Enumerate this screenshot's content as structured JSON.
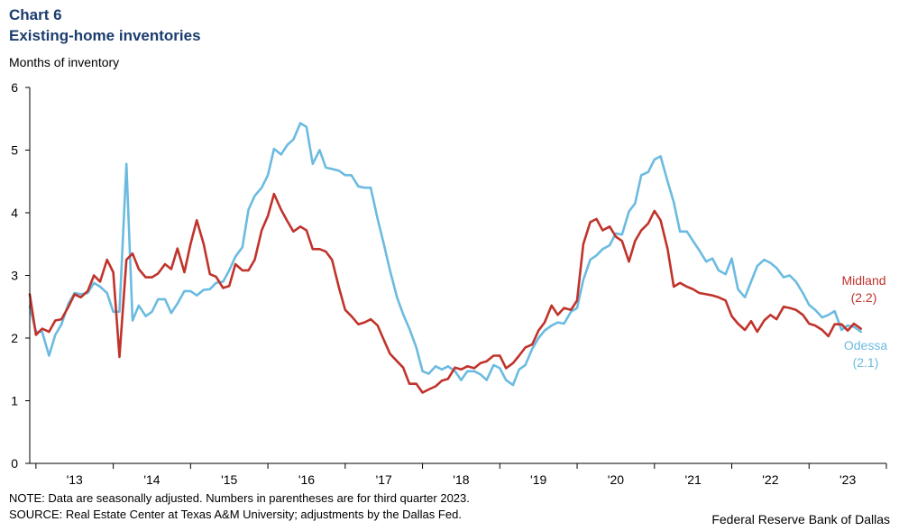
{
  "header": {
    "chart_number": "Chart 6",
    "title": "Existing-home inventories",
    "y_unit": "Months of inventory"
  },
  "footer": {
    "note": "NOTE: Data are seasonally adjusted. Numbers in parentheses are for third quarter 2023.",
    "source": "SOURCE: Real Estate Center at Texas A&M University; adjustments by the Dallas Fed.",
    "credit": "Federal Reserve Bank of Dallas"
  },
  "colors": {
    "midland": "#c0332b",
    "odessa": "#6bbbe0",
    "axis": "#000000"
  },
  "chart_data": {
    "type": "line",
    "title": "Existing-home inventories",
    "ylabel": "Months of inventory",
    "xlabel": "",
    "ylim": [
      0,
      6
    ],
    "yticks": [
      0,
      1,
      2,
      3,
      4,
      5,
      6
    ],
    "xlim": [
      2012.92,
      2024.0
    ],
    "xticks": [
      {
        "label": "'13",
        "year": 2013
      },
      {
        "label": "'14",
        "year": 2014
      },
      {
        "label": "'15",
        "year": 2015
      },
      {
        "label": "'16",
        "year": 2016
      },
      {
        "label": "'17",
        "year": 2017
      },
      {
        "label": "'18",
        "year": 2018
      },
      {
        "label": "'19",
        "year": 2019
      },
      {
        "label": "'20",
        "year": 2020
      },
      {
        "label": "'21",
        "year": 2021
      },
      {
        "label": "'22",
        "year": 2022
      },
      {
        "label": "'23",
        "year": 2023
      }
    ],
    "grid": false,
    "series": [
      {
        "name": "Midland",
        "end_label": [
          "Midland",
          "(2.2)"
        ],
        "color": "#c0332b",
        "points": [
          [
            2012.92,
            2.7
          ],
          [
            2013.0,
            2.05
          ],
          [
            2013.08,
            2.15
          ],
          [
            2013.17,
            2.1
          ],
          [
            2013.25,
            2.28
          ],
          [
            2013.33,
            2.3
          ],
          [
            2013.42,
            2.5
          ],
          [
            2013.5,
            2.7
          ],
          [
            2013.58,
            2.65
          ],
          [
            2013.67,
            2.75
          ],
          [
            2013.75,
            3.0
          ],
          [
            2013.83,
            2.9
          ],
          [
            2013.92,
            3.25
          ],
          [
            2014.0,
            3.05
          ],
          [
            2014.08,
            1.7
          ],
          [
            2014.17,
            3.25
          ],
          [
            2014.25,
            3.35
          ],
          [
            2014.33,
            3.1
          ],
          [
            2014.42,
            2.97
          ],
          [
            2014.5,
            2.97
          ],
          [
            2014.58,
            3.03
          ],
          [
            2014.67,
            3.18
          ],
          [
            2014.75,
            3.1
          ],
          [
            2014.83,
            3.43
          ],
          [
            2014.92,
            3.05
          ],
          [
            2015.0,
            3.5
          ],
          [
            2015.08,
            3.88
          ],
          [
            2015.17,
            3.5
          ],
          [
            2015.25,
            3.02
          ],
          [
            2015.33,
            2.98
          ],
          [
            2015.42,
            2.8
          ],
          [
            2015.5,
            2.83
          ],
          [
            2015.58,
            3.18
          ],
          [
            2015.67,
            3.08
          ],
          [
            2015.75,
            3.08
          ],
          [
            2015.83,
            3.25
          ],
          [
            2015.92,
            3.72
          ],
          [
            2016.0,
            3.95
          ],
          [
            2016.08,
            4.3
          ],
          [
            2016.17,
            4.05
          ],
          [
            2016.25,
            3.87
          ],
          [
            2016.33,
            3.7
          ],
          [
            2016.42,
            3.78
          ],
          [
            2016.5,
            3.72
          ],
          [
            2016.58,
            3.42
          ],
          [
            2016.67,
            3.42
          ],
          [
            2016.75,
            3.38
          ],
          [
            2016.83,
            3.25
          ],
          [
            2016.92,
            2.8
          ],
          [
            2017.0,
            2.45
          ],
          [
            2017.08,
            2.35
          ],
          [
            2017.17,
            2.22
          ],
          [
            2017.25,
            2.25
          ],
          [
            2017.33,
            2.3
          ],
          [
            2017.42,
            2.2
          ],
          [
            2017.5,
            1.97
          ],
          [
            2017.58,
            1.75
          ],
          [
            2017.67,
            1.63
          ],
          [
            2017.75,
            1.53
          ],
          [
            2017.83,
            1.27
          ],
          [
            2017.92,
            1.27
          ],
          [
            2018.0,
            1.13
          ],
          [
            2018.08,
            1.18
          ],
          [
            2018.17,
            1.23
          ],
          [
            2018.25,
            1.32
          ],
          [
            2018.33,
            1.35
          ],
          [
            2018.42,
            1.53
          ],
          [
            2018.5,
            1.5
          ],
          [
            2018.58,
            1.55
          ],
          [
            2018.67,
            1.52
          ],
          [
            2018.75,
            1.6
          ],
          [
            2018.83,
            1.63
          ],
          [
            2018.92,
            1.72
          ],
          [
            2019.0,
            1.72
          ],
          [
            2019.08,
            1.52
          ],
          [
            2019.17,
            1.6
          ],
          [
            2019.25,
            1.72
          ],
          [
            2019.33,
            1.85
          ],
          [
            2019.42,
            1.9
          ],
          [
            2019.5,
            2.12
          ],
          [
            2019.58,
            2.25
          ],
          [
            2019.67,
            2.52
          ],
          [
            2019.75,
            2.37
          ],
          [
            2019.83,
            2.48
          ],
          [
            2019.92,
            2.45
          ],
          [
            2020.0,
            2.6
          ],
          [
            2020.08,
            3.5
          ],
          [
            2020.17,
            3.85
          ],
          [
            2020.25,
            3.9
          ],
          [
            2020.33,
            3.72
          ],
          [
            2020.42,
            3.78
          ],
          [
            2020.5,
            3.62
          ],
          [
            2020.58,
            3.55
          ],
          [
            2020.67,
            3.22
          ],
          [
            2020.75,
            3.55
          ],
          [
            2020.83,
            3.72
          ],
          [
            2020.92,
            3.83
          ],
          [
            2021.0,
            4.03
          ],
          [
            2021.08,
            3.88
          ],
          [
            2021.17,
            3.42
          ],
          [
            2021.25,
            2.82
          ],
          [
            2021.33,
            2.88
          ],
          [
            2021.42,
            2.82
          ],
          [
            2021.5,
            2.78
          ],
          [
            2021.58,
            2.72
          ],
          [
            2021.67,
            2.7
          ],
          [
            2021.75,
            2.68
          ],
          [
            2021.83,
            2.65
          ],
          [
            2021.92,
            2.6
          ],
          [
            2022.0,
            2.35
          ],
          [
            2022.08,
            2.23
          ],
          [
            2022.17,
            2.13
          ],
          [
            2022.25,
            2.27
          ],
          [
            2022.33,
            2.1
          ],
          [
            2022.42,
            2.28
          ],
          [
            2022.5,
            2.37
          ],
          [
            2022.58,
            2.3
          ],
          [
            2022.67,
            2.5
          ],
          [
            2022.75,
            2.48
          ],
          [
            2022.83,
            2.45
          ],
          [
            2022.92,
            2.37
          ],
          [
            2023.0,
            2.23
          ],
          [
            2023.08,
            2.2
          ],
          [
            2023.17,
            2.13
          ],
          [
            2023.25,
            2.03
          ],
          [
            2023.33,
            2.22
          ],
          [
            2023.42,
            2.22
          ],
          [
            2023.5,
            2.12
          ],
          [
            2023.58,
            2.23
          ],
          [
            2023.67,
            2.15
          ]
        ]
      },
      {
        "name": "Odessa",
        "end_label": [
          "Odessa",
          "(2.1)"
        ],
        "color": "#6bbbe0",
        "points": [
          [
            2012.92,
            2.5
          ],
          [
            2013.0,
            2.1
          ],
          [
            2013.08,
            2.1
          ],
          [
            2013.17,
            1.72
          ],
          [
            2013.25,
            2.05
          ],
          [
            2013.33,
            2.22
          ],
          [
            2013.42,
            2.55
          ],
          [
            2013.5,
            2.72
          ],
          [
            2013.58,
            2.7
          ],
          [
            2013.67,
            2.72
          ],
          [
            2013.75,
            2.88
          ],
          [
            2013.83,
            2.82
          ],
          [
            2013.92,
            2.72
          ],
          [
            2014.0,
            2.42
          ],
          [
            2014.08,
            2.42
          ],
          [
            2014.17,
            4.78
          ],
          [
            2014.25,
            2.28
          ],
          [
            2014.33,
            2.52
          ],
          [
            2014.42,
            2.35
          ],
          [
            2014.5,
            2.42
          ],
          [
            2014.58,
            2.62
          ],
          [
            2014.67,
            2.62
          ],
          [
            2014.75,
            2.4
          ],
          [
            2014.83,
            2.55
          ],
          [
            2014.92,
            2.75
          ],
          [
            2015.0,
            2.75
          ],
          [
            2015.08,
            2.68
          ],
          [
            2015.17,
            2.77
          ],
          [
            2015.25,
            2.78
          ],
          [
            2015.33,
            2.88
          ],
          [
            2015.42,
            2.9
          ],
          [
            2015.5,
            3.08
          ],
          [
            2015.58,
            3.3
          ],
          [
            2015.67,
            3.45
          ],
          [
            2015.75,
            4.05
          ],
          [
            2015.83,
            4.27
          ],
          [
            2015.92,
            4.4
          ],
          [
            2016.0,
            4.6
          ],
          [
            2016.08,
            5.02
          ],
          [
            2016.17,
            4.93
          ],
          [
            2016.25,
            5.08
          ],
          [
            2016.33,
            5.17
          ],
          [
            2016.42,
            5.43
          ],
          [
            2016.5,
            5.37
          ],
          [
            2016.58,
            4.78
          ],
          [
            2016.67,
            5.0
          ],
          [
            2016.75,
            4.72
          ],
          [
            2016.83,
            4.7
          ],
          [
            2016.92,
            4.67
          ],
          [
            2017.0,
            4.6
          ],
          [
            2017.08,
            4.6
          ],
          [
            2017.17,
            4.42
          ],
          [
            2017.25,
            4.4
          ],
          [
            2017.33,
            4.4
          ],
          [
            2017.42,
            3.9
          ],
          [
            2017.5,
            3.5
          ],
          [
            2017.58,
            3.08
          ],
          [
            2017.67,
            2.65
          ],
          [
            2017.75,
            2.38
          ],
          [
            2017.83,
            2.15
          ],
          [
            2017.92,
            1.85
          ],
          [
            2018.0,
            1.47
          ],
          [
            2018.08,
            1.43
          ],
          [
            2018.17,
            1.55
          ],
          [
            2018.25,
            1.5
          ],
          [
            2018.33,
            1.55
          ],
          [
            2018.42,
            1.47
          ],
          [
            2018.5,
            1.33
          ],
          [
            2018.58,
            1.47
          ],
          [
            2018.67,
            1.47
          ],
          [
            2018.75,
            1.42
          ],
          [
            2018.83,
            1.33
          ],
          [
            2018.92,
            1.57
          ],
          [
            2019.0,
            1.52
          ],
          [
            2019.08,
            1.33
          ],
          [
            2019.17,
            1.25
          ],
          [
            2019.25,
            1.5
          ],
          [
            2019.33,
            1.57
          ],
          [
            2019.42,
            1.83
          ],
          [
            2019.5,
            2.0
          ],
          [
            2019.58,
            2.12
          ],
          [
            2019.67,
            2.2
          ],
          [
            2019.75,
            2.25
          ],
          [
            2019.83,
            2.23
          ],
          [
            2019.92,
            2.42
          ],
          [
            2020.0,
            2.48
          ],
          [
            2020.08,
            2.93
          ],
          [
            2020.17,
            3.25
          ],
          [
            2020.25,
            3.32
          ],
          [
            2020.33,
            3.42
          ],
          [
            2020.42,
            3.48
          ],
          [
            2020.5,
            3.67
          ],
          [
            2020.58,
            3.65
          ],
          [
            2020.67,
            4.02
          ],
          [
            2020.75,
            4.15
          ],
          [
            2020.83,
            4.6
          ],
          [
            2020.92,
            4.65
          ],
          [
            2021.0,
            4.85
          ],
          [
            2021.08,
            4.9
          ],
          [
            2021.17,
            4.5
          ],
          [
            2021.25,
            4.17
          ],
          [
            2021.33,
            3.7
          ],
          [
            2021.42,
            3.7
          ],
          [
            2021.5,
            3.55
          ],
          [
            2021.58,
            3.4
          ],
          [
            2021.67,
            3.22
          ],
          [
            2021.75,
            3.27
          ],
          [
            2021.83,
            3.08
          ],
          [
            2021.92,
            3.02
          ],
          [
            2022.0,
            3.27
          ],
          [
            2022.08,
            2.78
          ],
          [
            2022.17,
            2.65
          ],
          [
            2022.25,
            2.9
          ],
          [
            2022.33,
            3.15
          ],
          [
            2022.42,
            3.25
          ],
          [
            2022.5,
            3.2
          ],
          [
            2022.58,
            3.12
          ],
          [
            2022.67,
            2.97
          ],
          [
            2022.75,
            3.0
          ],
          [
            2022.83,
            2.9
          ],
          [
            2022.92,
            2.72
          ],
          [
            2023.0,
            2.53
          ],
          [
            2023.08,
            2.45
          ],
          [
            2023.17,
            2.33
          ],
          [
            2023.25,
            2.37
          ],
          [
            2023.33,
            2.43
          ],
          [
            2023.42,
            2.13
          ],
          [
            2023.5,
            2.2
          ],
          [
            2023.58,
            2.18
          ],
          [
            2023.67,
            2.1
          ]
        ]
      }
    ]
  }
}
